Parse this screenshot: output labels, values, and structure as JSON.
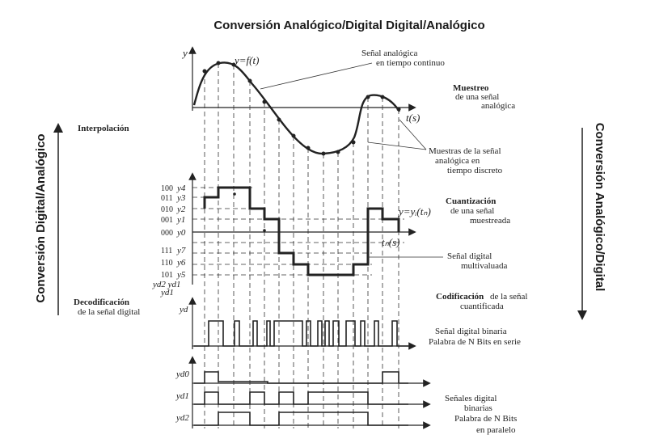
{
  "title": "Conversión Analógico/Digital   Digital/Analógico",
  "side_left": "Conversión Digital/Analógico",
  "side_right": "Conversión Analógico/Digital",
  "axes": {
    "y": "y",
    "f": "y=f(t)",
    "t": "t(s)",
    "yi": "y=yᵢ(tₙ)",
    "tn": "tₙ(s)",
    "yd": "yd",
    "yd0": "yd0",
    "yd1": "yd1",
    "yd2": "yd2"
  },
  "levels": [
    {
      "code": "100",
      "name": "y4"
    },
    {
      "code": "011",
      "name": "y3"
    },
    {
      "code": "010",
      "name": "y2"
    },
    {
      "code": "001",
      "name": "y1"
    },
    {
      "code": "000",
      "name": "y0"
    },
    {
      "code": "111",
      "name": "y7"
    },
    {
      "code": "110",
      "name": "y6"
    },
    {
      "code": "101",
      "name": "y5"
    }
  ],
  "bit_names_1": "yd2 yd1",
  "bit_names_2": "yd1",
  "left_labels": {
    "interp": "Interpolación",
    "decod1": "Decodificación",
    "decod2": "de la señal digital"
  },
  "right_labels": {
    "sa1": "Señal analógica",
    "sa2": "en tiempo continuo",
    "mu1": "Muestreo",
    "mu2": "de una señal",
    "mu3": "analógica",
    "ms1": "Muestras de la señal",
    "ms2": "analógica en",
    "ms3": "tiempo discreto",
    "cu1": "Cuantización",
    "cu2": "de una señal",
    "cu3": "muestreada",
    "sd1": "Señal digital",
    "sd2": "multivaluada",
    "co1": "Codificación",
    "co1b": " de la señal",
    "co2": "cuantificada",
    "sb1": "Señal digital binaria",
    "sb2": "Palabra de N Bits en serie",
    "sp1": "Señales digital",
    "sp2": "binarias",
    "sp3": "Palabra de N Bits",
    "sp4": "en paralelo"
  }
}
